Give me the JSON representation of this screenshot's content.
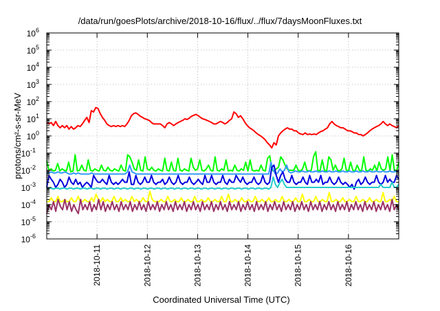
{
  "chart_data": {
    "type": "line",
    "title": "/data/run/goesPlots/archive/2018-10-16/flux/../flux/7daysMoonFluxes.txt",
    "xlabel": "Coordinated Universal Time (UTC)",
    "ylabel": "protons/cm²-s-sr-MeV",
    "yscale": "log",
    "ylim_exp": [
      -6,
      6
    ],
    "xlim": [
      "2018-10-10T00:00",
      "2018-10-17T00:00"
    ],
    "x_ticks": [
      "2018-10-11",
      "2018-10-12",
      "2018-10-13",
      "2018-10-14",
      "2018-10-15",
      "2018-10-16"
    ],
    "grid": true,
    "legend": "none",
    "series": [
      {
        "color": "#ff0000",
        "values": [
          6,
          5,
          6,
          4,
          7,
          4,
          3,
          4,
          3,
          4,
          2.5,
          3.5,
          2.5,
          3,
          4,
          3.5,
          5,
          8,
          12,
          6,
          30,
          25,
          45,
          40,
          20,
          12,
          8,
          5,
          4,
          3.5,
          4,
          3.5,
          4,
          3.5,
          4,
          3.5,
          5,
          8,
          15,
          20,
          22,
          18,
          14,
          12,
          10,
          9,
          8,
          6,
          5,
          5,
          5,
          5,
          4,
          3,
          5,
          6,
          5,
          4,
          5,
          6,
          7,
          8,
          10,
          9,
          11,
          14,
          16,
          18,
          15,
          12,
          10,
          9,
          8,
          7,
          6,
          5,
          5,
          6,
          7,
          6,
          5,
          6,
          8,
          10,
          25,
          20,
          12,
          15,
          10,
          6,
          4,
          3,
          2.5,
          2,
          1.5,
          1.2,
          1,
          0.8,
          0.6,
          0.4,
          0.3,
          0.2,
          0.4,
          0.3,
          1,
          1.5,
          2,
          2.5,
          3,
          2.5,
          2.5,
          2,
          2,
          1.5,
          1.3,
          1.2,
          1.5,
          1.2,
          1.3,
          1.2,
          1.3,
          1.2,
          1.5,
          1.8,
          2,
          2.5,
          3,
          5,
          7,
          5,
          4,
          3.5,
          3,
          3,
          2.5,
          2,
          2,
          1.8,
          1.5,
          1.5,
          1.2,
          1.2,
          1,
          1.2,
          1.5,
          2,
          2.5,
          3,
          3.5,
          4,
          5,
          7,
          5,
          4,
          5,
          4,
          3.5,
          3,
          4
        ]
      },
      {
        "color": "#00ff00",
        "values": [
          0.035,
          0.01,
          0.012,
          0.009,
          0.01,
          0.025,
          0.009,
          0.012,
          0.01,
          0.009,
          0.03,
          0.008,
          0.009,
          0.08,
          0.009,
          0.01,
          0.02,
          0.01,
          0.009,
          0.04,
          0.01,
          0.009,
          0.012,
          0.01,
          0.009,
          0.02,
          0.01,
          0.009,
          0.015,
          0.01,
          0.009,
          0.012,
          0.01,
          0.009,
          0.02,
          0.01,
          0.009,
          0.08,
          0.06,
          0.03,
          0.012,
          0.01,
          0.04,
          0.01,
          0.009,
          0.06,
          0.012,
          0.01,
          0.015,
          0.01,
          0.009,
          0.012,
          0.01,
          0.009,
          0.05,
          0.01,
          0.009,
          0.03,
          0.01,
          0.009,
          0.05,
          0.01,
          0.009,
          0.012,
          0.01,
          0.009,
          0.05,
          0.015,
          0.01,
          0.012,
          0.04,
          0.01,
          0.009,
          0.012,
          0.02,
          0.01,
          0.009,
          0.06,
          0.01,
          0.009,
          0.012,
          0.01,
          0.04,
          0.009,
          0.01,
          0.009,
          0.02,
          0.01,
          0.009,
          0.012,
          0.01,
          0.03,
          0.009,
          0.04,
          0.01,
          0.009,
          0.01,
          0.009,
          0.02,
          0.01,
          0.009,
          0.05,
          0.07,
          0.01,
          0.009,
          0.012,
          0.015,
          0.06,
          0.04,
          0.02,
          0.012,
          0.01,
          0.01,
          0.01,
          0.02,
          0.01,
          0.009,
          0.012,
          0.03,
          0.01,
          0.009,
          0.01,
          0.06,
          0.12,
          0.01,
          0.009,
          0.04,
          0.01,
          0.009,
          0.06,
          0.04,
          0.01,
          0.02,
          0.01,
          0.009,
          0.012,
          0.05,
          0.01,
          0.009,
          0.03,
          0.01,
          0.009,
          0.02,
          0.01,
          0.009,
          0.06,
          0.01,
          0.009,
          0.012,
          0.01,
          0.02,
          0.009,
          0.03,
          0.012,
          0.01,
          0.012,
          0.06,
          0.01,
          0.08,
          0.01,
          0.009,
          0.03
        ]
      },
      {
        "color": "#3399ff",
        "values": [
          0.007,
          0.007,
          0.008,
          0.007,
          0.007,
          0.008,
          0.007,
          0.007,
          0.008,
          0.007,
          0.006,
          0.006,
          0.007,
          0.006,
          0.007,
          0.006,
          0.006,
          0.006,
          0.006,
          0.006,
          0.007,
          0.006,
          0.006,
          0.006,
          0.006,
          0.006,
          0.006,
          0.006,
          0.006,
          0.006,
          0.006,
          0.006,
          0.006,
          0.006,
          0.006,
          0.006,
          0.008,
          0.02,
          0.008,
          0.007,
          0.006,
          0.006,
          0.006,
          0.006,
          0.006,
          0.006,
          0.006,
          0.006,
          0.006,
          0.006,
          0.006,
          0.006,
          0.006,
          0.006,
          0.006,
          0.006,
          0.006,
          0.006,
          0.006,
          0.006,
          0.006,
          0.006,
          0.006,
          0.006,
          0.006,
          0.006,
          0.006,
          0.006,
          0.006,
          0.006,
          0.006,
          0.006,
          0.006,
          0.006,
          0.006,
          0.006,
          0.006,
          0.006,
          0.006,
          0.006,
          0.006,
          0.006,
          0.006,
          0.006,
          0.006,
          0.006,
          0.006,
          0.006,
          0.006,
          0.006,
          0.006,
          0.006,
          0.006,
          0.006,
          0.006,
          0.006,
          0.006,
          0.006,
          0.006,
          0.006,
          0.03,
          0.01,
          0.006,
          0.007,
          0.012,
          0.008,
          0.01,
          0.02,
          0.008,
          0.007,
          0.008,
          0.009,
          0.008,
          0.008,
          0.009,
          0.008,
          0.008,
          0.009,
          0.008,
          0.008,
          0.009,
          0.008,
          0.008,
          0.009,
          0.008,
          0.008,
          0.009,
          0.008,
          0.008,
          0.009,
          0.008,
          0.008,
          0.009,
          0.008,
          0.008,
          0.009,
          0.008,
          0.008,
          0.009,
          0.008,
          0.008,
          0.009,
          0.008,
          0.008,
          0.009,
          0.008,
          0.008,
          0.009,
          0.008,
          0.008,
          0.009,
          0.008,
          0.008,
          0.009,
          0.008,
          0.008,
          0.009,
          0.008
        ]
      },
      {
        "color": "#0000dd",
        "values": [
          0.001,
          0.005,
          0.003,
          0.002,
          0.001,
          0.0015,
          0.003,
          0.002,
          0.001,
          0.0015,
          0.004,
          0.002,
          0.0015,
          0.003,
          0.0015,
          0.002,
          0.001,
          0.0015,
          0.002,
          0.0015,
          0.001,
          0.005,
          0.003,
          0.002,
          0.002,
          0.003,
          0.002,
          0.0015,
          0.005,
          0.002,
          0.0015,
          0.002,
          0.0015,
          0.002,
          0.003,
          0.002,
          0.002,
          0.008,
          0.0015,
          0.0015,
          0.005,
          0.002,
          0.0015,
          0.002,
          0.004,
          0.002,
          0.002,
          0.005,
          0.002,
          0.0015,
          0.002,
          0.002,
          0.003,
          0.0015,
          0.002,
          0.004,
          0.002,
          0.0015,
          0.002,
          0.005,
          0.002,
          0.0015,
          0.002,
          0.002,
          0.004,
          0.002,
          0.0015,
          0.002,
          0.003,
          0.002,
          0.0015,
          0.005,
          0.002,
          0.002,
          0.005,
          0.002,
          0.0015,
          0.002,
          0.002,
          0.005,
          0.002,
          0.0015,
          0.003,
          0.002,
          0.002,
          0.005,
          0.003,
          0.002,
          0.004,
          0.002,
          0.0015,
          0.002,
          0.002,
          0.004,
          0.002,
          0.0015,
          0.002,
          0.005,
          0.002,
          0.0015,
          0.002,
          0.015,
          0.02,
          0.005,
          0.002,
          0.005,
          0.008,
          0.003,
          0.002,
          0.002,
          0.005,
          0.002,
          0.0015,
          0.002,
          0.002,
          0.004,
          0.002,
          0.0015,
          0.005,
          0.002,
          0.002,
          0.003,
          0.002,
          0.005,
          0.0015,
          0.002,
          0.002,
          0.004,
          0.002,
          0.0015,
          0.002,
          0.004,
          0.002,
          0.0015,
          0.002,
          0.0015,
          0.001,
          0.0015,
          0.0008,
          0.002,
          0.003,
          0.0015,
          0.002,
          0.004,
          0.002,
          0.0015,
          0.002,
          0.002,
          0.005,
          0.002,
          0.0015,
          0.002,
          0.005,
          0.002,
          0.003,
          0.002,
          0.002,
          0.005,
          0.003
        ]
      },
      {
        "color": "#22cccc",
        "values": [
          0.0008,
          0.0009,
          0.0009,
          0.0008,
          0.0009,
          0.0009,
          0.0008,
          0.0009,
          0.0009,
          0.0008,
          0.0009,
          0.0009,
          0.0008,
          0.0009,
          0.0009,
          0.0008,
          0.0009,
          0.0009,
          0.0008,
          0.0009,
          0.0009,
          0.0008,
          0.0009,
          0.0009,
          0.0008,
          0.0009,
          0.0009,
          0.0008,
          0.0009,
          0.0009,
          0.0008,
          0.0009,
          0.0009,
          0.0008,
          0.0009,
          0.0009,
          0.0008,
          0.0009,
          0.0009,
          0.0008,
          0.0009,
          0.0009,
          0.0008,
          0.0009,
          0.0009,
          0.0008,
          0.0009,
          0.0009,
          0.0008,
          0.0009,
          0.0009,
          0.0008,
          0.0009,
          0.0009,
          0.0008,
          0.0009,
          0.0009,
          0.0008,
          0.0009,
          0.0009,
          0.0008,
          0.0009,
          0.0009,
          0.0008,
          0.0009,
          0.0009,
          0.0008,
          0.0009,
          0.0009,
          0.0008,
          0.0009,
          0.0009,
          0.0008,
          0.0009,
          0.0009,
          0.0008,
          0.0009,
          0.0009,
          0.0008,
          0.0009,
          0.0009,
          0.0008,
          0.0009,
          0.0009,
          0.0008,
          0.0009,
          0.0009,
          0.0008,
          0.0009,
          0.0009,
          0.0008,
          0.0009,
          0.0009,
          0.0008,
          0.0009,
          0.0009,
          0.0008,
          0.0009,
          0.0009,
          0.0008,
          0.001,
          0.004,
          0.0015,
          0.001,
          0.002,
          0.003,
          0.0015,
          0.001,
          0.001,
          0.001,
          0.001,
          0.001,
          0.001,
          0.001,
          0.001,
          0.001,
          0.001,
          0.001,
          0.001,
          0.001,
          0.001,
          0.001,
          0.001,
          0.001,
          0.001,
          0.001,
          0.001,
          0.001,
          0.001,
          0.001,
          0.001,
          0.001,
          0.001,
          0.001,
          0.001,
          0.001,
          0.001,
          0.001,
          0.001,
          0.001,
          0.001,
          0.001,
          0.001,
          0.001,
          0.001,
          0.001,
          0.001,
          0.001,
          0.001,
          0.0015,
          0.001,
          0.001,
          0.001,
          0.001,
          0.002,
          0.001,
          0.001,
          0.0015
        ]
      },
      {
        "color": "#ffff00",
        "values": [
          0.00015,
          0.00015,
          0.00025,
          0.00015,
          0.00015,
          0.0003,
          0.00015,
          0.00015,
          0.0002,
          0.00015,
          0.00015,
          0.00025,
          0.00015,
          0.00015,
          0.0003,
          0.00015,
          0.00015,
          0.0002,
          0.00015,
          0.00015,
          0.00025,
          0.00015,
          0.0004,
          0.0002,
          0.00015,
          0.00025,
          0.00015,
          0.0002,
          0.00015,
          0.00015,
          0.0003,
          0.00015,
          0.00015,
          0.00025,
          0.00015,
          0.0002,
          0.00015,
          0.00015,
          0.0003,
          0.00015,
          0.0002,
          0.00015,
          0.00015,
          0.00025,
          0.00015,
          0.00015,
          0.0006,
          0.0002,
          0.00015,
          0.00015,
          0.00015,
          0.0002,
          0.00015,
          0.00015,
          0.0003,
          0.00015,
          0.00015,
          0.0002,
          0.00015,
          0.00015,
          0.00025,
          0.00015,
          0.00015,
          0.0002,
          0.00015,
          0.00015,
          0.0003,
          0.00015,
          0.00015,
          0.0002,
          0.00015,
          0.00015,
          0.00025,
          0.00015,
          0.00015,
          0.0002,
          0.00015,
          0.00015,
          0.0003,
          0.00015,
          0.00015,
          0.0004,
          0.00015,
          0.00015,
          0.0002,
          0.00015,
          0.00015,
          0.00025,
          0.00015,
          0.00015,
          0.0002,
          0.00015,
          0.00015,
          0.0003,
          0.00015,
          0.00015,
          0.0002,
          0.00015,
          0.00015,
          0.00025,
          0.00015,
          0.00015,
          0.0002,
          0.00015,
          0.00015,
          0.0003,
          0.00015,
          0.00015,
          0.0002,
          0.00015,
          0.00015,
          0.00025,
          0.00015,
          0.00015,
          0.0004,
          0.00015,
          0.00015,
          0.0002,
          0.00015,
          0.00015,
          0.0003,
          0.00015,
          0.00015,
          0.0002,
          0.00015,
          0.00015,
          0.0005,
          0.00015,
          0.00015,
          0.0002,
          0.00015,
          0.00015,
          0.00025,
          0.00015,
          0.00015,
          0.0002,
          0.00015,
          0.00015,
          0.0003,
          0.00015,
          0.00015,
          0.0002,
          0.00015,
          0.00015,
          0.00025,
          0.00015,
          0.00015,
          0.0002,
          0.00015,
          0.00015,
          0.0005,
          0.00015,
          0.00015,
          0.0002,
          0.00015,
          0.0003,
          0.00015,
          0.00015
        ]
      },
      {
        "color": "#993366",
        "values": [
          3e-05,
          0.0001,
          5e-05,
          0.00015,
          4e-05,
          0.0002,
          8e-05,
          5e-05,
          0.0002,
          5e-05,
          0.00015,
          4e-05,
          0.0001,
          5e-05,
          3e-05,
          0.0002,
          5e-05,
          0.0001,
          5e-05,
          0.00015,
          4e-05,
          0.0001,
          5e-05,
          0.0002,
          5e-05,
          0.00015,
          4e-05,
          0.0001,
          5e-05,
          0.00015,
          5e-05,
          0.0001,
          4e-05,
          0.00015,
          5e-05,
          0.0001,
          5e-05,
          0.00015,
          4e-05,
          0.0001,
          5e-05,
          0.00015,
          5e-05,
          0.0001,
          4e-05,
          0.00015,
          5e-05,
          0.0001,
          5e-05,
          0.00015,
          4e-05,
          0.0001,
          5e-05,
          0.00015,
          5e-05,
          0.0001,
          4e-05,
          0.00015,
          5e-05,
          0.0001,
          5e-05,
          0.00015,
          4e-05,
          0.0001,
          5e-05,
          0.00015,
          5e-05,
          0.0001,
          4e-05,
          0.00015,
          5e-05,
          0.0001,
          5e-05,
          0.00015,
          4e-05,
          0.0001,
          5e-05,
          0.00015,
          5e-05,
          0.0001,
          4e-05,
          0.00015,
          5e-05,
          0.0001,
          5e-05,
          0.00015,
          4e-05,
          0.0001,
          5e-05,
          0.00015,
          5e-05,
          0.0001,
          4e-05,
          0.00015,
          5e-05,
          0.0001,
          5e-05,
          0.00015,
          4e-05,
          0.0001,
          5e-05,
          0.00015,
          5e-05,
          0.0001,
          4e-05,
          0.00015,
          5e-05,
          0.0001,
          5e-05,
          0.00015,
          4e-05,
          0.0001,
          5e-05,
          0.00015,
          5e-05,
          0.0001,
          4e-05,
          0.00015,
          5e-05,
          0.0001,
          5e-05,
          0.00015,
          4e-05,
          0.0001,
          5e-05,
          0.00015,
          5e-05,
          0.0001,
          4e-05,
          0.00015,
          5e-05,
          0.0001,
          5e-05,
          0.00015,
          4e-05,
          0.0001,
          5e-05,
          0.00015,
          5e-05,
          0.0001,
          4e-05,
          0.00015,
          5e-05,
          0.0001,
          5e-05,
          0.00015,
          4e-05,
          0.0001,
          5e-05,
          0.00015,
          5e-05,
          0.0001,
          4e-05,
          0.0002,
          5e-05,
          0.0001,
          5e-05
        ]
      }
    ]
  }
}
